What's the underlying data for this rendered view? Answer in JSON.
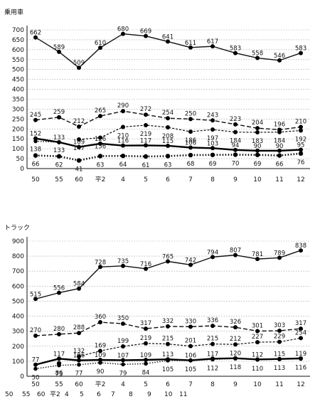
{
  "chart_data": [
    {
      "type": "line",
      "title": "乗用車",
      "categories": [
        "50",
        "55",
        "60",
        "平2",
        "4",
        "5",
        "6",
        "7",
        "8",
        "9",
        "10",
        "11",
        "12"
      ],
      "ylim": [
        0,
        700
      ],
      "yticks": [
        0,
        50,
        100,
        150,
        200,
        250,
        300,
        350,
        400,
        450,
        500,
        550,
        600,
        650,
        700
      ],
      "grid": true,
      "series": [
        {
          "style": "solid-thin",
          "values": [
            662,
            589,
            509,
            610,
            680,
            669,
            641,
            611,
            617,
            583,
            558,
            546,
            583
          ]
        },
        {
          "style": "dashed",
          "values": [
            245,
            259,
            212,
            265,
            290,
            272,
            254,
            250,
            243,
            223,
            204,
            196,
            210
          ]
        },
        {
          "style": "dashed-fine",
          "values": [
            null,
            null,
            147,
            156,
            210,
            219,
            208,
            186,
            197,
            184,
            183,
            184,
            192
          ]
        },
        {
          "style": "solid-bold",
          "values": [
            152,
            133,
            109,
            126,
            116,
            117,
            115,
            106,
            103,
            94,
            90,
            90,
            95
          ]
        },
        {
          "style": "dotted",
          "values": [
            138,
            133,
            null,
            null,
            null,
            null,
            null,
            null,
            null,
            null,
            null,
            null,
            null
          ]
        },
        {
          "style": "dotted-bold",
          "values": [
            66,
            62,
            41,
            63,
            64,
            61,
            63,
            68,
            69,
            70,
            69,
            66,
            76
          ]
        }
      ]
    },
    {
      "type": "line",
      "title": "トラック",
      "categories": [
        "50",
        "55",
        "60",
        "平2",
        "4",
        "5",
        "6",
        "7",
        "8",
        "9",
        "10",
        "11",
        "12"
      ],
      "ylim": [
        0,
        900
      ],
      "yticks": [
        0,
        100,
        200,
        300,
        400,
        500,
        600,
        700,
        800,
        900
      ],
      "grid": true,
      "series": [
        {
          "style": "solid-thin",
          "values": [
            515,
            556,
            584,
            728,
            735,
            716,
            765,
            742,
            794,
            807,
            781,
            789,
            838
          ]
        },
        {
          "style": "dashed",
          "values": [
            270,
            280,
            288,
            360,
            350,
            317,
            332,
            330,
            336,
            326,
            301,
            303,
            317
          ]
        },
        {
          "style": "dashed-fine",
          "values": [
            null,
            null,
            132,
            169,
            199,
            219,
            215,
            201,
            215,
            212,
            227,
            229,
            254
          ]
        },
        {
          "style": "solid-bold",
          "values": [
            77,
            117,
            106,
            109,
            107,
            109,
            113,
            106,
            117,
            120,
            112,
            115,
            119
          ]
        },
        {
          "style": "dotted",
          "values": [
            50,
            73,
            77,
            90,
            79,
            84,
            105,
            105,
            112,
            118,
            110,
            113,
            116
          ]
        },
        {
          "style": "dotted-bold",
          "values": [
            null,
            86,
            null,
            null,
            null,
            null,
            null,
            null,
            null,
            null,
            null,
            null,
            null
          ]
        }
      ],
      "secondary_xlabels": [
        "50",
        "55",
        "60",
        "平2",
        "4",
        "5",
        "6",
        "7",
        "8",
        "9",
        "10",
        "11"
      ]
    }
  ]
}
